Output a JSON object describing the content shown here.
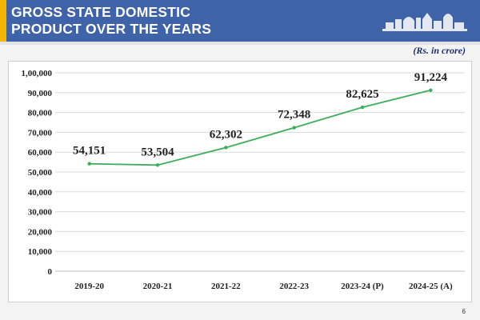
{
  "slide": {
    "title_line1": "GROSS STATE DOMESTIC",
    "title_line2": "PRODUCT OVER THE YEARS",
    "unit_note": "(Rs. in crore)",
    "page_number": "6",
    "logo_icon": "government-building-icon"
  },
  "colors": {
    "header_bg": "#3f63a8",
    "accent": "#f4b400",
    "line": "#3cae5a",
    "grid": "#d9d9d9"
  },
  "chart_data": {
    "type": "line",
    "title": "GROSS STATE DOMESTIC PRODUCT OVER THE YEARS",
    "ylabel": "",
    "xlabel": "",
    "unit": "(Rs. in crore)",
    "categories": [
      "2019-20",
      "2020-21",
      "2021-22",
      "2022-23",
      "2023-24 (P)",
      "2024-25 (A)"
    ],
    "series": [
      {
        "values": [
          54151,
          53504,
          62302,
          72348,
          82625,
          91224
        ],
        "data_labels": [
          "54,151",
          "53,504",
          "62,302",
          "72,348",
          "82,625",
          "91,224"
        ]
      }
    ],
    "ylim": [
      0,
      100000
    ],
    "yticks": [
      0,
      10000,
      20000,
      30000,
      40000,
      50000,
      60000,
      70000,
      80000,
      90000,
      100000
    ],
    "ytick_labels": [
      "0",
      "10,000",
      "20,000",
      "30,000",
      "40,000",
      "50,000",
      "60,000",
      "70,000",
      "80,000",
      "90,000",
      "1,00,000"
    ],
    "grid": true,
    "legend": "none"
  }
}
